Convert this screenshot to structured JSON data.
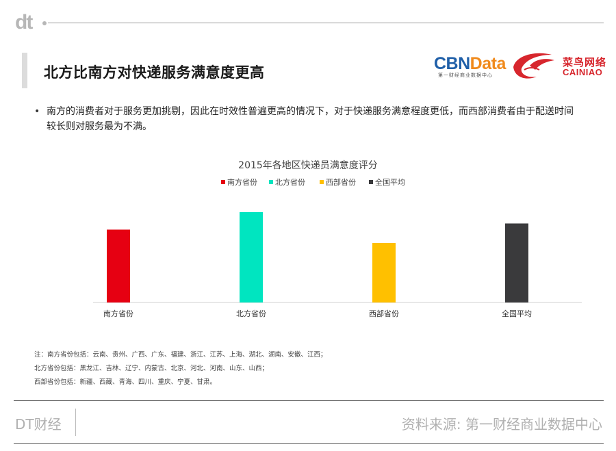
{
  "header": {
    "logo_text": "dt",
    "title": "北方比南方对快递服务满意度更高"
  },
  "brands": {
    "cbn_prefix": "CBN",
    "cbn_suffix": "Data",
    "cbn_subtitle": "第一财经商业数据中心",
    "cainiao_cn": "菜鸟网络",
    "cainiao_en": "CAINIAO"
  },
  "bullet": {
    "text": "南方的消费者对于服务更加挑剔，因此在时效性普遍更高的情况下，对于快递服务满意程度更低，而西部消费者由于配送时间较长则对服务最为不满。"
  },
  "chart_data": {
    "type": "bar",
    "title": "2015年各地区快递员满意度评分",
    "categories": [
      "南方省份",
      "北方省份",
      "西部省份",
      "全国平均"
    ],
    "values": [
      71,
      88,
      58,
      77
    ],
    "colors": [
      "#e60012",
      "#00e5c0",
      "#ffc000",
      "#3a3a3c"
    ],
    "legend": [
      "南方省份",
      "北方省份",
      "西部省份",
      "全国平均"
    ],
    "legend_position": "top-center",
    "ylim": [
      0,
      100
    ],
    "grid": false,
    "show_y_axis": false
  },
  "notes": [
    "注：南方省份包括：云南、贵州、广西、广东、福建、浙江、江苏、上海、湖北、湖南、安徽、江西；",
    "北方省份包括：黑龙江、吉林、辽宁、内蒙古、北京、河北、河南、山东、山西；",
    "西部省份包括：新疆、西藏、青海、四川、重庆、宁夏、甘肃。"
  ],
  "footer": {
    "left": "DT财经",
    "right": "资料来源: 第一财经商业数据中心"
  }
}
